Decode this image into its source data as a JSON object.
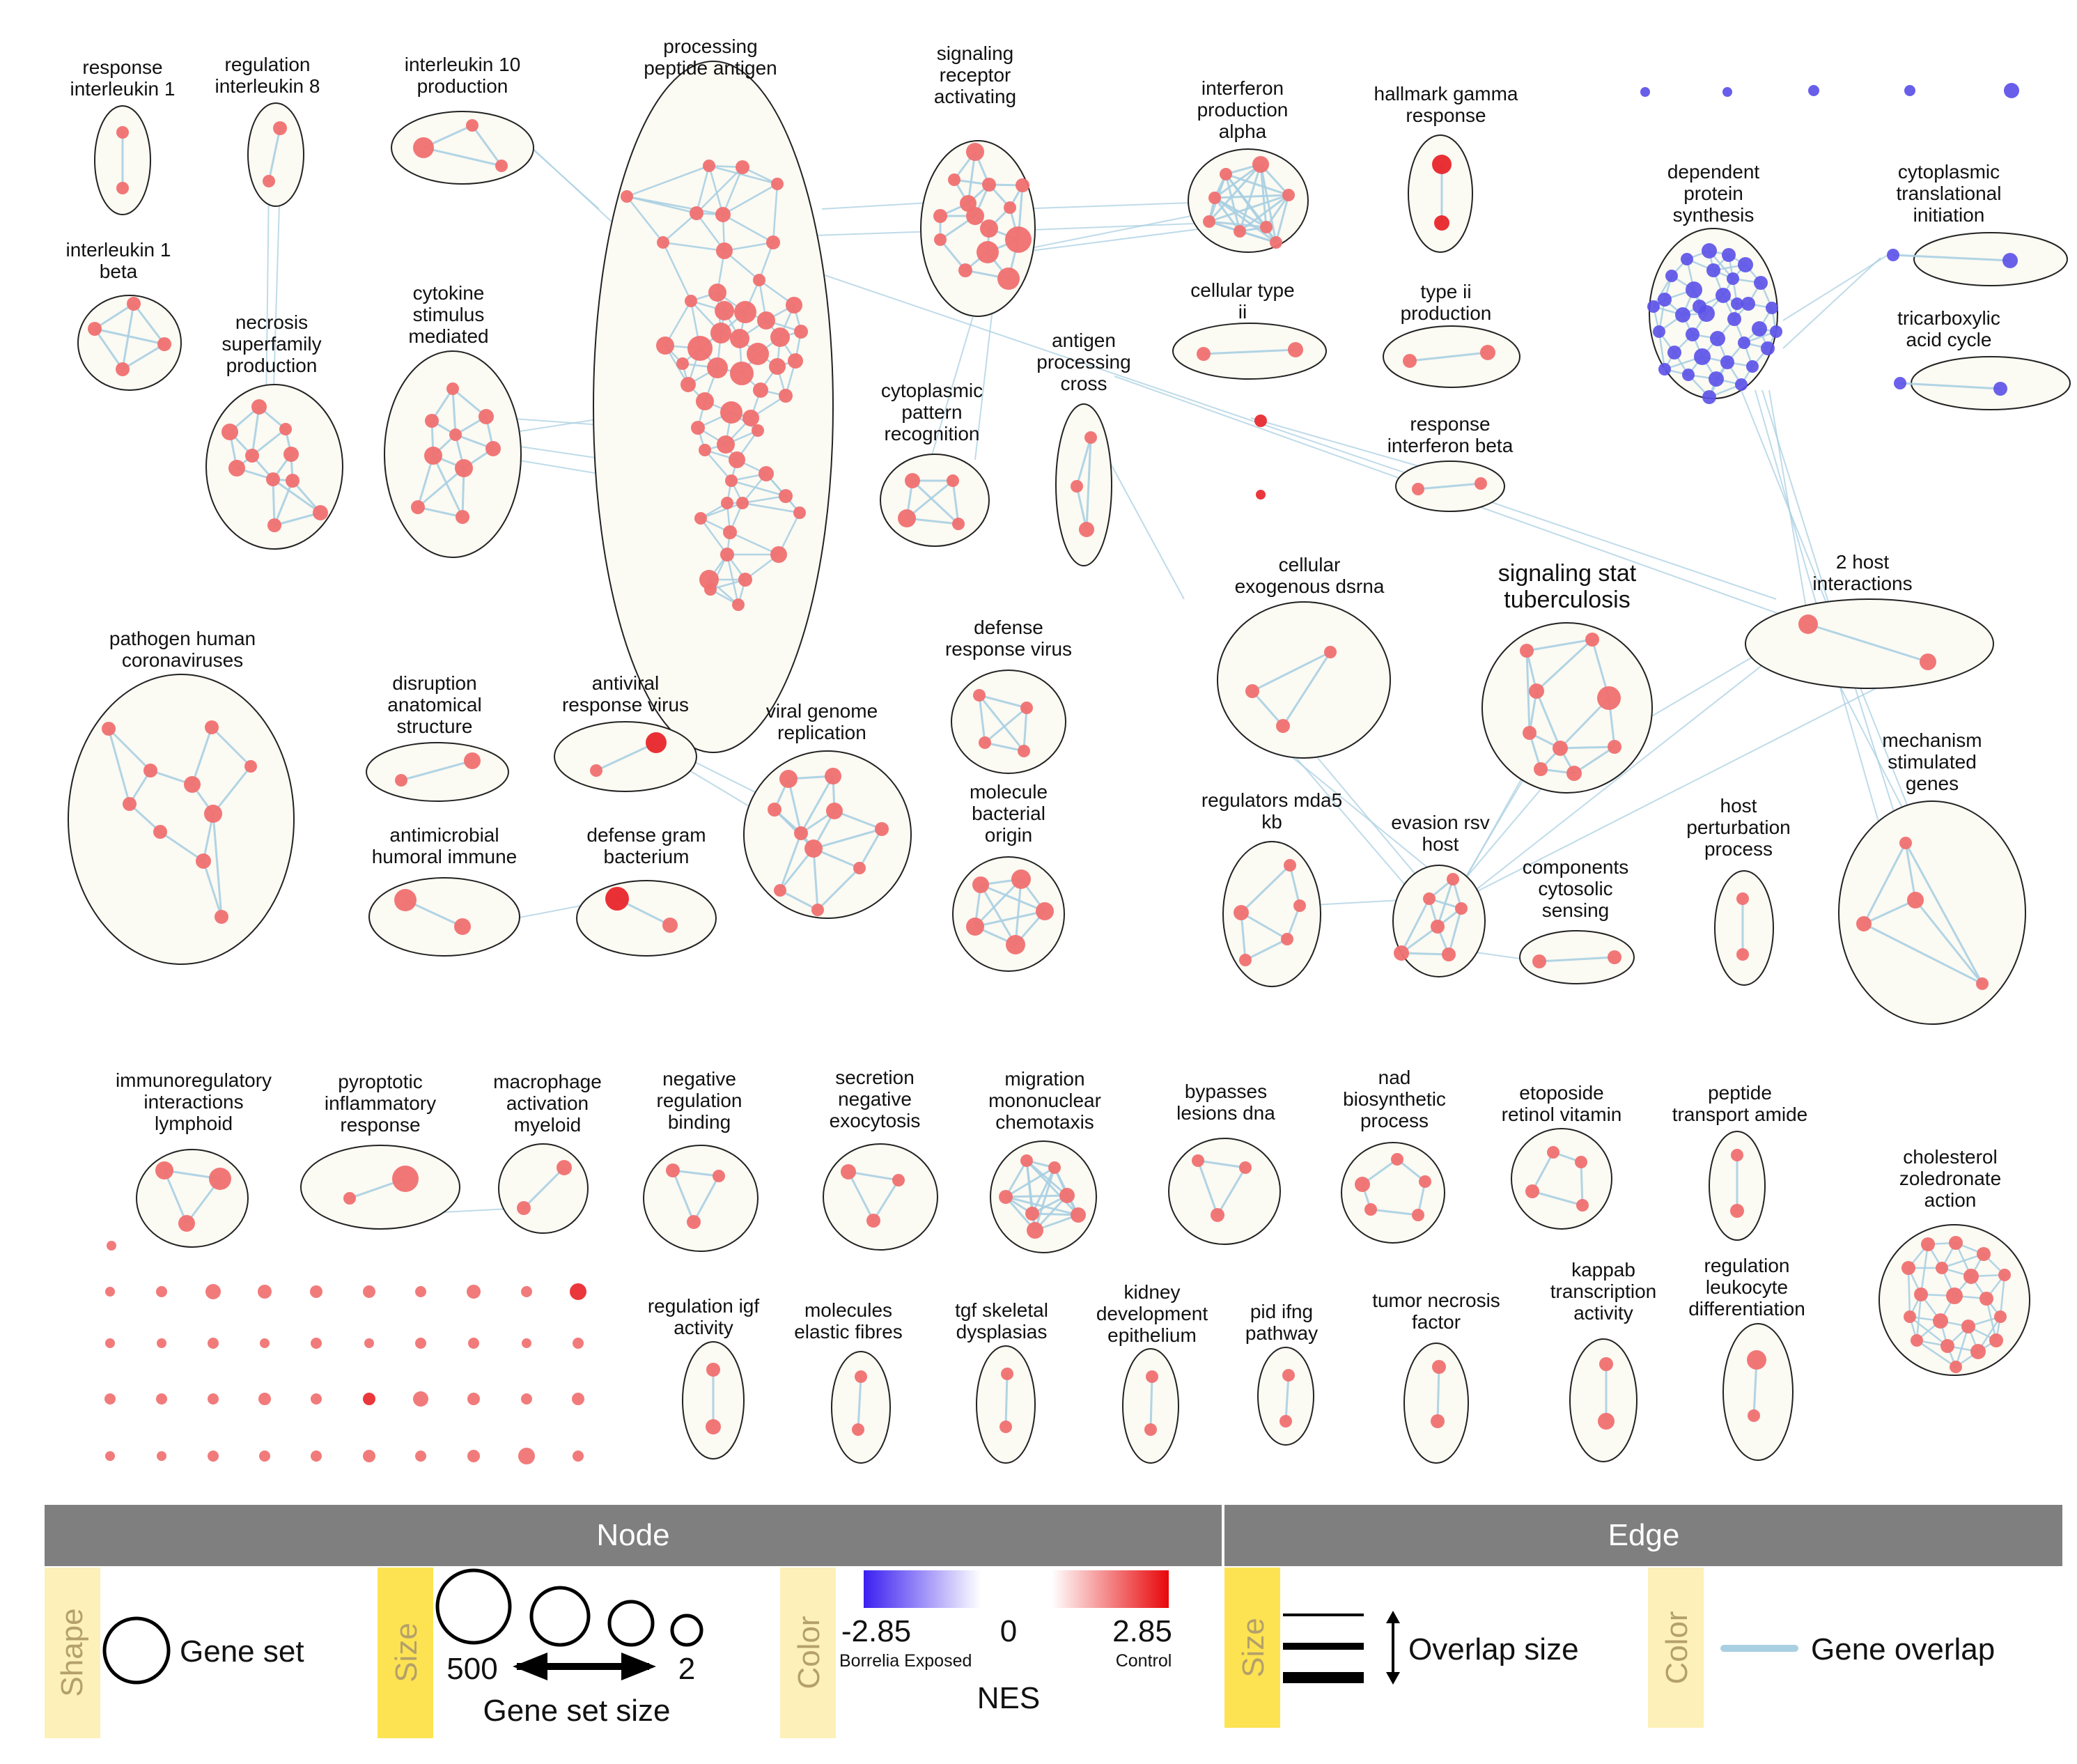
{
  "clusters": [
    {
      "id": "c1",
      "label": [
        "response",
        "interleukin 1"
      ]
    },
    {
      "id": "c2",
      "label": [
        "regulation",
        "interleukin 8"
      ]
    },
    {
      "id": "c3",
      "label": [
        "interleukin 10",
        "production"
      ]
    },
    {
      "id": "c4",
      "label": [
        "processing",
        "peptide antigen"
      ]
    },
    {
      "id": "c5",
      "label": [
        "signaling",
        "receptor",
        "activating"
      ]
    },
    {
      "id": "c6",
      "label": [
        "interferon",
        "production",
        "alpha"
      ]
    },
    {
      "id": "c7",
      "label": [
        "hallmark gamma",
        "response"
      ]
    },
    {
      "id": "c8",
      "label": [
        "interleukin 1",
        "beta"
      ]
    },
    {
      "id": "c9",
      "label": [
        "necrosis",
        "superfamily",
        "production"
      ]
    },
    {
      "id": "c10",
      "label": [
        "cytokine",
        "stimulus",
        "mediated"
      ]
    },
    {
      "id": "c11",
      "label": [
        "cellular type",
        "ii"
      ]
    },
    {
      "id": "c12",
      "label": [
        "type ii",
        "production"
      ]
    },
    {
      "id": "c13",
      "label": [
        "dependent",
        "protein",
        "synthesis"
      ]
    },
    {
      "id": "c14",
      "label": [
        "cytoplasmic",
        "translational",
        "initiation"
      ]
    },
    {
      "id": "c15",
      "label": [
        "tricarboxylic",
        "acid cycle"
      ]
    },
    {
      "id": "c16",
      "label": [
        "antigen",
        "processing",
        "cross"
      ]
    },
    {
      "id": "c17",
      "label": [
        "cytoplasmic",
        "pattern",
        "recognition"
      ]
    },
    {
      "id": "c18",
      "label": [
        "response",
        "interferon beta"
      ]
    },
    {
      "id": "c19",
      "label": [
        "cellular",
        "exogenous dsrna"
      ]
    },
    {
      "id": "c20",
      "label": [
        "signaling stat",
        "tuberculosis"
      ]
    },
    {
      "id": "c21",
      "label": [
        "2 host",
        "interactions"
      ]
    },
    {
      "id": "c22",
      "label": [
        "pathogen human",
        "coronaviruses"
      ]
    },
    {
      "id": "c23",
      "label": [
        "disruption",
        "anatomical",
        "structure"
      ]
    },
    {
      "id": "c24",
      "label": [
        "antiviral",
        "response virus"
      ]
    },
    {
      "id": "c25",
      "label": [
        "viral genome",
        "replication"
      ]
    },
    {
      "id": "c26",
      "label": [
        "defense",
        "response virus"
      ]
    },
    {
      "id": "c27",
      "label": [
        "antimicrobial",
        "humoral immune"
      ]
    },
    {
      "id": "c28",
      "label": [
        "defense gram",
        "bacterium"
      ]
    },
    {
      "id": "c29",
      "label": [
        "molecule",
        "bacterial",
        "origin"
      ]
    },
    {
      "id": "c30",
      "label": [
        "regulators mda5",
        "kb"
      ]
    },
    {
      "id": "c31",
      "label": [
        "evasion rsv",
        "host"
      ]
    },
    {
      "id": "c32",
      "label": [
        "components",
        "cytosolic",
        "sensing"
      ]
    },
    {
      "id": "c33",
      "label": [
        "host",
        "perturbation",
        "process"
      ]
    },
    {
      "id": "c34",
      "label": [
        "mechanism",
        "stimulated",
        "genes"
      ]
    },
    {
      "id": "c35",
      "label": [
        "immunoregulatory",
        "interactions",
        "lymphoid"
      ]
    },
    {
      "id": "c36",
      "label": [
        "pyroptotic",
        "inflammatory",
        "response"
      ]
    },
    {
      "id": "c37",
      "label": [
        "macrophage",
        "activation",
        "myeloid"
      ]
    },
    {
      "id": "c38",
      "label": [
        "negative",
        "regulation",
        "binding"
      ]
    },
    {
      "id": "c39",
      "label": [
        "secretion",
        "negative",
        "exocytosis"
      ]
    },
    {
      "id": "c40",
      "label": [
        "migration",
        "mononuclear",
        "chemotaxis"
      ]
    },
    {
      "id": "c41",
      "label": [
        "bypasses",
        "lesions dna"
      ]
    },
    {
      "id": "c42",
      "label": [
        "nad",
        "biosynthetic",
        "process"
      ]
    },
    {
      "id": "c43",
      "label": [
        "etoposide",
        "retinol vitamin"
      ]
    },
    {
      "id": "c44",
      "label": [
        "peptide",
        "transport amide"
      ]
    },
    {
      "id": "c45",
      "label": [
        "cholesterol",
        "zoledronate",
        "action"
      ]
    },
    {
      "id": "c46",
      "label": [
        "regulation igf",
        "activity"
      ]
    },
    {
      "id": "c47",
      "label": [
        "molecules",
        "elastic fibres"
      ]
    },
    {
      "id": "c48",
      "label": [
        "tgf skeletal",
        "dysplasias"
      ]
    },
    {
      "id": "c49",
      "label": [
        "kidney",
        "development",
        "epithelium"
      ]
    },
    {
      "id": "c50",
      "label": [
        "pid ifng",
        "pathway"
      ]
    },
    {
      "id": "c51",
      "label": [
        "tumor necrosis",
        "factor"
      ]
    },
    {
      "id": "c52",
      "label": [
        "kappab",
        "transcription",
        "activity"
      ]
    },
    {
      "id": "c53",
      "label": [
        "regulation",
        "leukocyte",
        "differentiation"
      ]
    }
  ],
  "legend": {
    "node_header": "Node",
    "edge_header": "Edge",
    "shape_tag": "Shape",
    "shape_text": "Gene set",
    "size_tag": "Size",
    "size_max": "500",
    "size_min": "2",
    "size_caption": "Gene set size",
    "color_tag": "Color",
    "nes_min": "-2.85",
    "nes_mid": "0",
    "nes_max": "2.85",
    "nes_low_group": "Borrelia Exposed",
    "nes_high_group": "Control",
    "nes_caption": "NES",
    "edge_size_tag": "Size",
    "edge_size_text": "Overlap size",
    "edge_color_tag": "Color",
    "edge_color_text": "Gene overlap"
  },
  "colors": {
    "node_up": "#f07070",
    "node_strong": "#e8262a",
    "node_down": "#5b50e8",
    "edge": "#a9cfe2",
    "cluster_fill": "#fbfaf3",
    "header_bar": "#7f7f7f",
    "tag_fill": "#fdf0b8",
    "tag_fill_strong": "#fde352"
  }
}
